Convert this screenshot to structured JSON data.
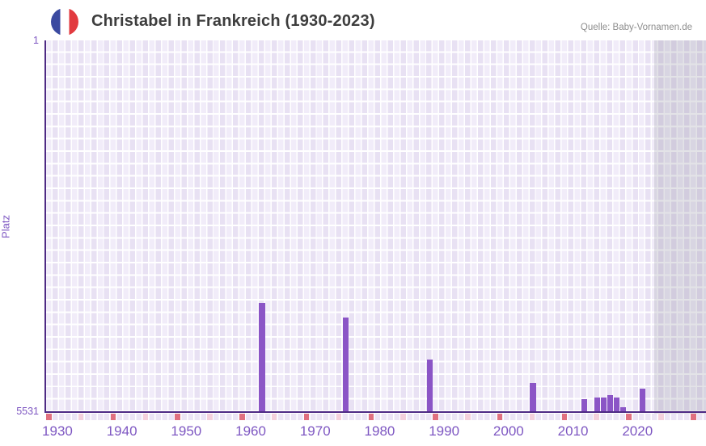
{
  "header": {
    "title": "Christabel in Frankreich (1930-2023)",
    "source": "Quelle: Baby-Vornamen.de",
    "flag_icon": "france-flag-icon"
  },
  "y_axis": {
    "label": "Platz",
    "top_tick": "1",
    "bottom_tick": "5531"
  },
  "x_axis": {
    "ticks": [
      "1930",
      "1940",
      "1950",
      "1960",
      "1970",
      "1980",
      "1990",
      "2000",
      "2010",
      "2020"
    ]
  },
  "chart_data": {
    "type": "bar",
    "title": "Christabel in Frankreich (1930-2023)",
    "xlabel": "",
    "ylabel": "Platz",
    "y_axis_inverted": true,
    "ylim": [
      1,
      5531
    ],
    "x_years_shown": [
      1929,
      2031
    ],
    "data_year_range": [
      1930,
      2023
    ],
    "points": [
      {
        "year": 1962,
        "rank": 3910
      },
      {
        "year": 1975,
        "rank": 4120
      },
      {
        "year": 1988,
        "rank": 4750
      },
      {
        "year": 2004,
        "rank": 5100
      },
      {
        "year": 2012,
        "rank": 5340
      },
      {
        "year": 2014,
        "rank": 5310
      },
      {
        "year": 2015,
        "rank": 5310
      },
      {
        "year": 2016,
        "rank": 5280
      },
      {
        "year": 2017,
        "rank": 5320
      },
      {
        "year": 2018,
        "rank": 5460
      },
      {
        "year": 2021,
        "rank": 5180
      }
    ],
    "timeline_strip": {
      "red_years": [
        1929,
        1939,
        1949,
        1959,
        1969,
        1979,
        1989,
        1999,
        2009,
        2019,
        2029
      ],
      "pink_years": [
        1934,
        1944,
        1954,
        1964,
        1974,
        1984,
        1994,
        2004,
        2014,
        2024
      ]
    },
    "future_band_start_year": 2023.3,
    "legend": "none",
    "grid": "on"
  },
  "colors": {
    "bar": "#8b55c6",
    "axis_line": "#4e2a84",
    "axis_text": "#7e57c2",
    "grid_cell_light": "#f1ecf9",
    "grid_cell_dark": "#e8e1f3",
    "strip_red": "#e0707f",
    "strip_pink": "#f4d0dc",
    "strip_base": "#ebe4f5",
    "future_band": "rgba(146,146,162,0.26)",
    "title_text": "#3d3d3d",
    "source_text": "#8d8d8d",
    "flag_blue": "#3b4aa0",
    "flag_red": "#e23a3f"
  }
}
